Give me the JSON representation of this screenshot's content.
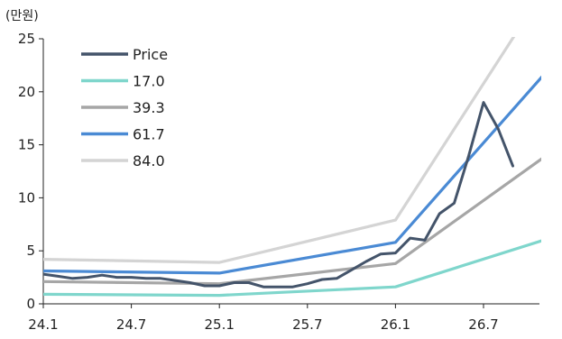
{
  "chart_data": {
    "type": "line",
    "title": "",
    "unit_label": "(만원)",
    "xlabel": "",
    "ylabel": "",
    "x_tick_labels": [
      "24.1",
      "24.7",
      "25.1",
      "25.7",
      "26.1",
      "26.7"
    ],
    "xlim": [
      "2024.01",
      "2026.12"
    ],
    "ylim": [
      0,
      25
    ],
    "y_ticks": [
      0,
      5,
      10,
      15,
      20,
      25
    ],
    "grid": false,
    "legend_position": "top-left",
    "series": [
      {
        "name": "Price",
        "color": "#44546A",
        "points": [
          [
            "2024.01",
            2.8
          ],
          [
            "2024.02",
            2.6
          ],
          [
            "2024.03",
            2.4
          ],
          [
            "2024.04",
            2.5
          ],
          [
            "2024.05",
            2.7
          ],
          [
            "2024.06",
            2.5
          ],
          [
            "2024.07",
            2.5
          ],
          [
            "2024.08",
            2.4
          ],
          [
            "2024.09",
            2.4
          ],
          [
            "2024.10",
            2.2
          ],
          [
            "2024.11",
            2.0
          ],
          [
            "2024.12",
            1.7
          ],
          [
            "2025.01",
            1.7
          ],
          [
            "2025.02",
            2.0
          ],
          [
            "2025.03",
            2.0
          ],
          [
            "2025.04",
            1.6
          ],
          [
            "2025.05",
            1.6
          ],
          [
            "2025.06",
            1.6
          ],
          [
            "2025.07",
            1.9
          ],
          [
            "2025.08",
            2.3
          ],
          [
            "2025.09",
            2.4
          ],
          [
            "2025.10",
            3.2
          ],
          [
            "2025.11",
            4.0
          ],
          [
            "2025.12",
            4.7
          ],
          [
            "2026.01",
            4.8
          ],
          [
            "2026.02",
            6.2
          ],
          [
            "2026.03",
            6.0
          ],
          [
            "2026.04",
            8.5
          ],
          [
            "2026.05",
            9.5
          ],
          [
            "2026.06",
            14.0
          ],
          [
            "2026.07",
            19.0
          ],
          [
            "2026.08",
            16.5
          ],
          [
            "2026.09",
            13.0
          ]
        ]
      },
      {
        "name": "17.0",
        "color": "#7FD6CC",
        "points": [
          [
            "2024.01",
            0.9
          ],
          [
            "2025.01",
            0.8
          ],
          [
            "2026.01",
            1.6
          ],
          [
            "2026.12",
            6.4
          ]
        ]
      },
      {
        "name": "39.3",
        "color": "#A6A6A6",
        "points": [
          [
            "2024.01",
            2.1
          ],
          [
            "2025.01",
            1.9
          ],
          [
            "2026.01",
            3.8
          ],
          [
            "2026.12",
            14.7
          ]
        ]
      },
      {
        "name": "61.7",
        "color": "#4A8AD4",
        "points": [
          [
            "2024.01",
            3.1
          ],
          [
            "2025.01",
            2.9
          ],
          [
            "2026.01",
            5.8
          ],
          [
            "2026.12",
            23.0
          ]
        ]
      },
      {
        "name": "84.0",
        "color": "#D4D4D4",
        "points": [
          [
            "2024.01",
            4.2
          ],
          [
            "2025.01",
            3.9
          ],
          [
            "2026.01",
            7.9
          ],
          [
            "2026.12",
            31.5
          ]
        ]
      }
    ]
  }
}
